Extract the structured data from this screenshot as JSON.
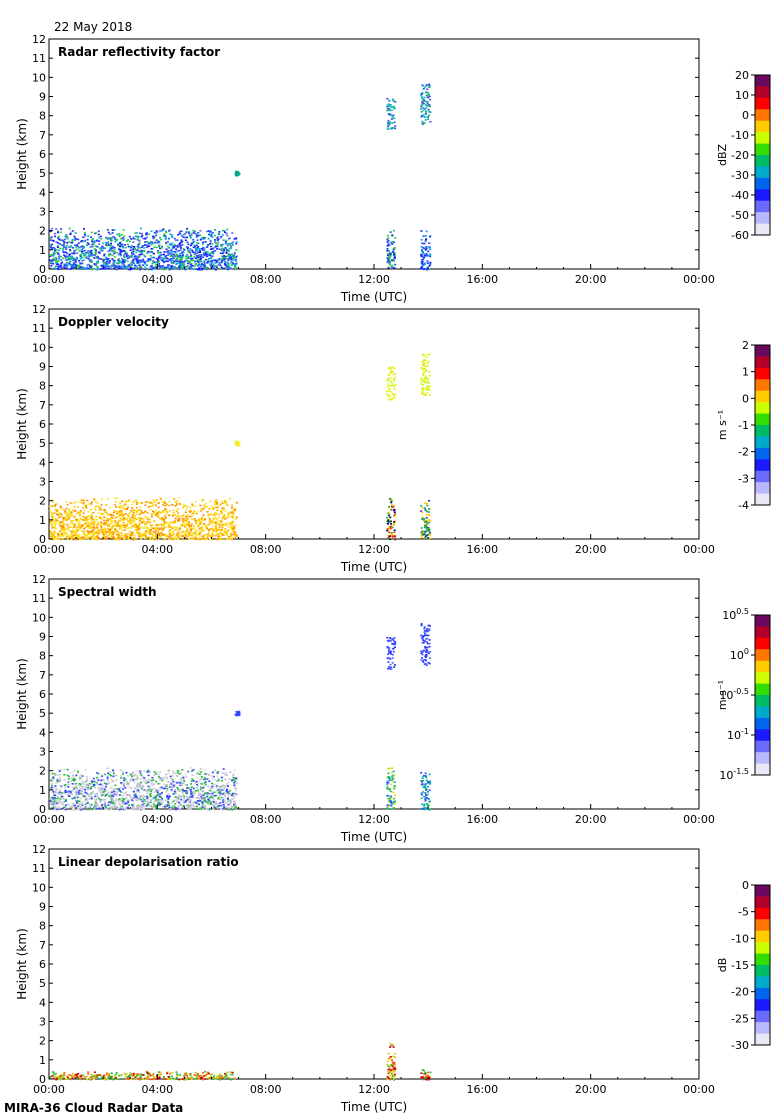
{
  "header": {
    "date": "22 May 2018"
  },
  "footer": {
    "label": "MIRA-36 Cloud Radar Data"
  },
  "chart_data": [
    {
      "type": "heatmap",
      "title": "Radar reflectivity factor",
      "xlabel": "Time (UTC)",
      "ylabel": "Height (km)",
      "xticks": [
        "00:00",
        "04:00",
        "08:00",
        "12:00",
        "16:00",
        "20:00",
        "00:00"
      ],
      "xlim_hours": [
        0,
        24
      ],
      "ylim": [
        0,
        12
      ],
      "yticks": [
        0,
        1,
        2,
        3,
        4,
        5,
        6,
        7,
        8,
        9,
        10,
        11,
        12
      ],
      "colorbar": {
        "label": "dBZ",
        "ticks": [
          "20",
          "10",
          "0",
          "-10",
          "-20",
          "-30",
          "-40",
          "-50",
          "-60"
        ],
        "range": [
          -60,
          20
        ]
      },
      "palette": "reflectivity",
      "features": [
        {
          "t0": 0.0,
          "t1": 6.9,
          "h0": 0.0,
          "h1": 2.2,
          "color_mix": [
            "#1a1aff",
            "#2244ee",
            "#5566ff",
            "#00aadd",
            "#22cc44"
          ]
        },
        {
          "t0": 12.45,
          "t1": 12.75,
          "h0": 7.3,
          "h1": 9.0,
          "color_mix": [
            "#22aa88",
            "#11bbbb",
            "#3355dd"
          ]
        },
        {
          "t0": 13.7,
          "t1": 14.05,
          "h0": 7.5,
          "h1": 9.7,
          "color_mix": [
            "#22aa88",
            "#11bbbb",
            "#3355dd"
          ]
        },
        {
          "t0": 12.45,
          "t1": 12.75,
          "h0": 0.0,
          "h1": 2.3,
          "color_mix": [
            "#2244ee",
            "#1a1aff",
            "#22cc44"
          ]
        },
        {
          "t0": 13.7,
          "t1": 14.05,
          "h0": 0.0,
          "h1": 2.1,
          "color_mix": [
            "#2244ee",
            "#1a1aff",
            "#00aadd"
          ]
        },
        {
          "t0": 6.85,
          "t1": 7.0,
          "h0": 4.9,
          "h1": 5.15,
          "color_mix": [
            "#00aa88"
          ]
        }
      ]
    },
    {
      "type": "heatmap",
      "title": "Doppler velocity",
      "xlabel": "Time (UTC)",
      "ylabel": "Height (km)",
      "xticks": [
        "00:00",
        "04:00",
        "08:00",
        "12:00",
        "16:00",
        "20:00",
        "00:00"
      ],
      "xlim_hours": [
        0,
        24
      ],
      "ylim": [
        0,
        12
      ],
      "yticks": [
        0,
        1,
        2,
        3,
        4,
        5,
        6,
        7,
        8,
        9,
        10,
        11,
        12
      ],
      "colorbar": {
        "label": "m s⁻¹",
        "ticks": [
          "2",
          "1",
          "0",
          "-1",
          "-2",
          "-3",
          "-4"
        ],
        "range": [
          -4,
          2
        ]
      },
      "palette": "velocity",
      "features": [
        {
          "t0": 0.0,
          "t1": 6.9,
          "h0": 0.0,
          "h1": 2.2,
          "color_mix": [
            "#ffcc00",
            "#ffdd22",
            "#ffaa00",
            "#eeee33",
            "#ff8800"
          ]
        },
        {
          "t0": 12.45,
          "t1": 12.75,
          "h0": 7.3,
          "h1": 9.0,
          "color_mix": [
            "#ddee22",
            "#ccff33",
            "#eeee11"
          ]
        },
        {
          "t0": 13.7,
          "t1": 14.05,
          "h0": 7.5,
          "h1": 9.7,
          "color_mix": [
            "#ddee22",
            "#ccff33",
            "#eeee11"
          ]
        },
        {
          "t0": 12.45,
          "t1": 12.75,
          "h0": 0.0,
          "h1": 2.3,
          "color_mix": [
            "#ff3300",
            "#22aa22",
            "#ffcc00",
            "#000066"
          ]
        },
        {
          "t0": 13.7,
          "t1": 14.05,
          "h0": 0.0,
          "h1": 2.1,
          "color_mix": [
            "#22aa22",
            "#ffcc00",
            "#00aa88",
            "#3333aa"
          ]
        },
        {
          "t0": 6.85,
          "t1": 7.0,
          "h0": 4.9,
          "h1": 5.15,
          "color_mix": [
            "#eeee22"
          ]
        }
      ]
    },
    {
      "type": "heatmap",
      "title": "Spectral width",
      "xlabel": "Time (UTC)",
      "ylabel": "Height (km)",
      "xticks": [
        "00:00",
        "04:00",
        "08:00",
        "12:00",
        "16:00",
        "20:00",
        "00:00"
      ],
      "xlim_hours": [
        0,
        24
      ],
      "ylim": [
        0,
        12
      ],
      "yticks": [
        0,
        1,
        2,
        3,
        4,
        5,
        6,
        7,
        8,
        9,
        10,
        11,
        12
      ],
      "colorbar": {
        "label": "m s⁻¹",
        "ticks": [
          "10^0.5",
          "10^0",
          "10^-0.5",
          "10^-1",
          "10^-1.5"
        ],
        "range": [
          -1.5,
          0.5
        ]
      },
      "palette": "width",
      "features": [
        {
          "t0": 0.0,
          "t1": 6.9,
          "h0": 0.0,
          "h1": 2.2,
          "color_mix": [
            "#cccccc",
            "#bbbbdd",
            "#3344ff",
            "#dddddd",
            "#22bb44"
          ]
        },
        {
          "t0": 12.45,
          "t1": 12.75,
          "h0": 7.3,
          "h1": 9.0,
          "color_mix": [
            "#2233ee",
            "#3344ff",
            "#5566ff"
          ]
        },
        {
          "t0": 13.7,
          "t1": 14.05,
          "h0": 7.5,
          "h1": 9.7,
          "color_mix": [
            "#2233ee",
            "#3344ff",
            "#5566ff"
          ]
        },
        {
          "t0": 12.45,
          "t1": 12.75,
          "h0": 0.0,
          "h1": 2.3,
          "color_mix": [
            "#22bb44",
            "#3344ff",
            "#00aacc",
            "#ccdd22"
          ]
        },
        {
          "t0": 13.7,
          "t1": 14.05,
          "h0": 0.0,
          "h1": 2.1,
          "color_mix": [
            "#22bb44",
            "#3344ff",
            "#00aacc"
          ]
        },
        {
          "t0": 6.85,
          "t1": 7.0,
          "h0": 4.9,
          "h1": 5.15,
          "color_mix": [
            "#3344ff"
          ]
        }
      ]
    },
    {
      "type": "heatmap",
      "title": "Linear depolarisation ratio",
      "xlabel": "Time (UTC)",
      "ylabel": "Height (km)",
      "xticks": [
        "00:00",
        "04:00",
        "08:00",
        "12:00",
        "16:00",
        "20:00",
        "00:00"
      ],
      "xlim_hours": [
        0,
        24
      ],
      "ylim": [
        0,
        12
      ],
      "yticks": [
        0,
        1,
        2,
        3,
        4,
        5,
        6,
        7,
        8,
        9,
        10,
        11,
        12
      ],
      "colorbar": {
        "label": "dB",
        "ticks": [
          "0",
          "-5",
          "-10",
          "-15",
          "-20",
          "-25",
          "-30"
        ],
        "range": [
          -30,
          0
        ]
      },
      "palette": "ldr",
      "features": [
        {
          "t0": 0.0,
          "t1": 6.9,
          "h0": 0.0,
          "h1": 0.45,
          "color_mix": [
            "#22bb44",
            "#ff6600",
            "#ddcc00",
            "#cc0000",
            "#88cc22"
          ]
        },
        {
          "t0": 12.45,
          "t1": 12.75,
          "h0": 0.0,
          "h1": 2.0,
          "color_mix": [
            "#cc0000",
            "#ff6600",
            "#ddcc00",
            "#22bb44"
          ]
        },
        {
          "t0": 13.7,
          "t1": 14.05,
          "h0": 0.0,
          "h1": 0.8,
          "color_mix": [
            "#cc0000",
            "#ff6600",
            "#22bb44"
          ]
        }
      ]
    }
  ]
}
